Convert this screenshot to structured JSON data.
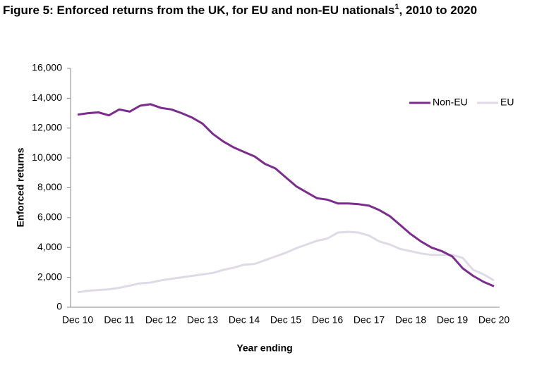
{
  "chart_data": {
    "type": "line",
    "title": [
      "Figure 5: Enforced returns from the UK, for EU and non-EU nationals",
      "1",
      ", 2010 to 2020"
    ],
    "x_label": "Year ending",
    "y_label": "Enforced returns",
    "categories": [
      "Dec 10",
      null,
      null,
      null,
      "Dec 11",
      null,
      null,
      null,
      "Dec 12",
      null,
      null,
      null,
      "Dec 13",
      null,
      null,
      null,
      "Dec 14",
      null,
      null,
      null,
      "Dec 15",
      null,
      null,
      null,
      "Dec 16",
      null,
      null,
      null,
      "Dec 17",
      null,
      null,
      null,
      "Dec 18",
      null,
      null,
      null,
      "Dec 19",
      null,
      null,
      null,
      "Dec 20"
    ],
    "series": [
      {
        "name": "Non-EU",
        "color": "#7b2d8e",
        "values": [
          12900,
          13000,
          13050,
          12850,
          13250,
          13100,
          13500,
          13600,
          13350,
          13250,
          13000,
          12700,
          12300,
          11600,
          11100,
          10700,
          10400,
          10100,
          9600,
          9300,
          8700,
          8100,
          7700,
          7300,
          7200,
          6950,
          6950,
          6900,
          6800,
          6500,
          6100,
          5500,
          4900,
          4400,
          4000,
          3750,
          3400,
          2600,
          2100,
          1700,
          1400
        ]
      },
      {
        "name": "EU",
        "color": "#dedae6",
        "values": [
          1000,
          1100,
          1150,
          1200,
          1300,
          1450,
          1600,
          1650,
          1800,
          1900,
          2000,
          2100,
          2200,
          2300,
          2500,
          2650,
          2850,
          2900,
          3150,
          3400,
          3650,
          3950,
          4200,
          4450,
          4600,
          5000,
          5050,
          5000,
          4800,
          4400,
          4200,
          3900,
          3750,
          3600,
          3500,
          3500,
          3500,
          3300,
          2500,
          2200,
          1800
        ]
      }
    ],
    "ylim": [
      0,
      16000
    ],
    "yticks": [
      0,
      {
        "value": 2000,
        "label": "2,000"
      },
      {
        "value": 4000,
        "label": "4,000"
      },
      {
        "value": 6000,
        "label": "6,000"
      },
      {
        "value": 8000,
        "label": "8,000"
      },
      {
        "value": 10000,
        "label": "10,000"
      },
      {
        "value": 12000,
        "label": "12,000"
      },
      {
        "value": 14000,
        "label": "14,000"
      },
      {
        "value": 16000,
        "label": "16,000"
      }
    ],
    "legend": "top-right",
    "grid": false
  }
}
